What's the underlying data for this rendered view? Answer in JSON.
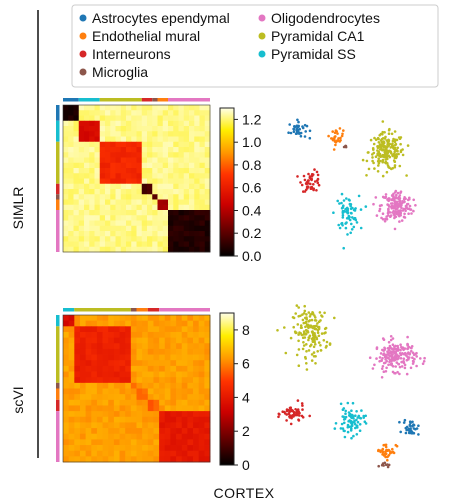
{
  "legend": {
    "items": [
      {
        "label": "Astrocytes ependymal",
        "color": "#1f77b4"
      },
      {
        "label": "Endothelial mural",
        "color": "#ff7f0e"
      },
      {
        "label": "Interneurons",
        "color": "#d62728"
      },
      {
        "label": "Microglia",
        "color": "#8c564b"
      },
      {
        "label": "Oligodendrocytes",
        "color": "#e377c2"
      },
      {
        "label": "Pyramidal CA1",
        "color": "#bcbd22"
      },
      {
        "label": "Pyramidal SS",
        "color": "#17becf"
      }
    ]
  },
  "row_labels": {
    "top": "SIMLR",
    "bottom": "scVI"
  },
  "footer_label": "CORTEX",
  "chart_data": [
    {
      "type": "heatmap",
      "panel": "SIMLR similarity matrix",
      "colormap": "hot",
      "colorbar_range": [
        0.0,
        1.3
      ],
      "colorbar_ticks": [
        "0.0",
        "0.2",
        "0.4",
        "0.6",
        "0.8",
        "1.0",
        "1.2"
      ],
      "blocks": [
        {
          "cluster": "Astrocytes ependymal",
          "size": 3,
          "within": 0.05
        },
        {
          "cluster": "Pyramidal SS",
          "size": 4,
          "within": 0.5
        },
        {
          "cluster": "Pyramidal CA1",
          "size": 8,
          "within": 0.65
        },
        {
          "cluster": "Interneurons",
          "size": 2,
          "within": 0.15
        },
        {
          "cluster": "Microglia",
          "size": 1,
          "within": 0.2
        },
        {
          "cluster": "Endothelial mural",
          "size": 2,
          "within": 0.35
        },
        {
          "cluster": "Oligodendrocytes",
          "size": 8,
          "within": 0.08
        }
      ],
      "between": 1.22
    },
    {
      "type": "scatter",
      "panel": "SIMLR embedding",
      "clusters": [
        {
          "name": "Astrocytes ependymal",
          "center": [
            -3.2,
            2.6
          ],
          "spread": [
            0.45,
            0.35
          ],
          "n": 40
        },
        {
          "name": "Endothelial mural",
          "center": [
            -1.2,
            2.3
          ],
          "spread": [
            0.3,
            0.3
          ],
          "n": 28
        },
        {
          "name": "Microglia",
          "center": [
            -0.8,
            1.9
          ],
          "spread": [
            0.1,
            0.1
          ],
          "n": 5
        },
        {
          "name": "Pyramidal CA1",
          "center": [
            1.3,
            1.7
          ],
          "spread": [
            0.9,
            0.75
          ],
          "n": 190
        },
        {
          "name": "Interneurons",
          "center": [
            -2.5,
            0.5
          ],
          "spread": [
            0.5,
            0.4
          ],
          "n": 45
        },
        {
          "name": "Pyramidal SS",
          "center": [
            -0.7,
            -0.8
          ],
          "spread": [
            0.6,
            0.7
          ],
          "n": 70
        },
        {
          "name": "Oligodendrocytes",
          "center": [
            1.8,
            -0.5
          ],
          "spread": [
            0.8,
            0.65
          ],
          "n": 180
        }
      ],
      "xlim": [
        -4.5,
        4.0
      ],
      "ylim": [
        -2.2,
        3.8
      ]
    },
    {
      "type": "heatmap",
      "panel": "scVI similarity matrix",
      "colormap": "hot",
      "colorbar_range": [
        0.0,
        9.0
      ],
      "colorbar_ticks": [
        "0",
        "2",
        "4",
        "6",
        "8"
      ],
      "blocks": [
        {
          "cluster": "Pyramidal SS",
          "size": 2,
          "within": 3.6
        },
        {
          "cluster": "Pyramidal CA1",
          "size": 10,
          "within": 4.3
        },
        {
          "cluster": "Microglia",
          "size": 1,
          "within": 5.6
        },
        {
          "cluster": "Endothelial mural",
          "size": 2,
          "within": 5.8
        },
        {
          "cluster": "Interneurons",
          "size": 2,
          "within": 5.4
        },
        {
          "cluster": "Oligodendrocytes",
          "size": 9,
          "within": 4.0
        }
      ],
      "between": 6.4
    },
    {
      "type": "scatter",
      "panel": "scVI embedding",
      "clusters": [
        {
          "name": "Pyramidal CA1",
          "center": [
            -1.8,
            2.0
          ],
          "spread": [
            0.8,
            0.9
          ],
          "n": 160
        },
        {
          "name": "Oligodendrocytes",
          "center": [
            2.0,
            1.1
          ],
          "spread": [
            0.95,
            0.55
          ],
          "n": 190
        },
        {
          "name": "Interneurons",
          "center": [
            -2.6,
            -1.1
          ],
          "spread": [
            0.5,
            0.35
          ],
          "n": 55
        },
        {
          "name": "Pyramidal SS",
          "center": [
            0.0,
            -1.4
          ],
          "spread": [
            0.6,
            0.55
          ],
          "n": 75
        },
        {
          "name": "Astrocytes ependymal",
          "center": [
            2.7,
            -1.6
          ],
          "spread": [
            0.35,
            0.3
          ],
          "n": 35
        },
        {
          "name": "Endothelial mural",
          "center": [
            1.6,
            -2.5
          ],
          "spread": [
            0.45,
            0.3
          ],
          "n": 38
        },
        {
          "name": "Microglia",
          "center": [
            1.5,
            -3.0
          ],
          "spread": [
            0.2,
            0.1
          ],
          "n": 9
        }
      ],
      "xlim": [
        -4.0,
        4.0
      ],
      "ylim": [
        -3.6,
        3.6
      ]
    }
  ]
}
